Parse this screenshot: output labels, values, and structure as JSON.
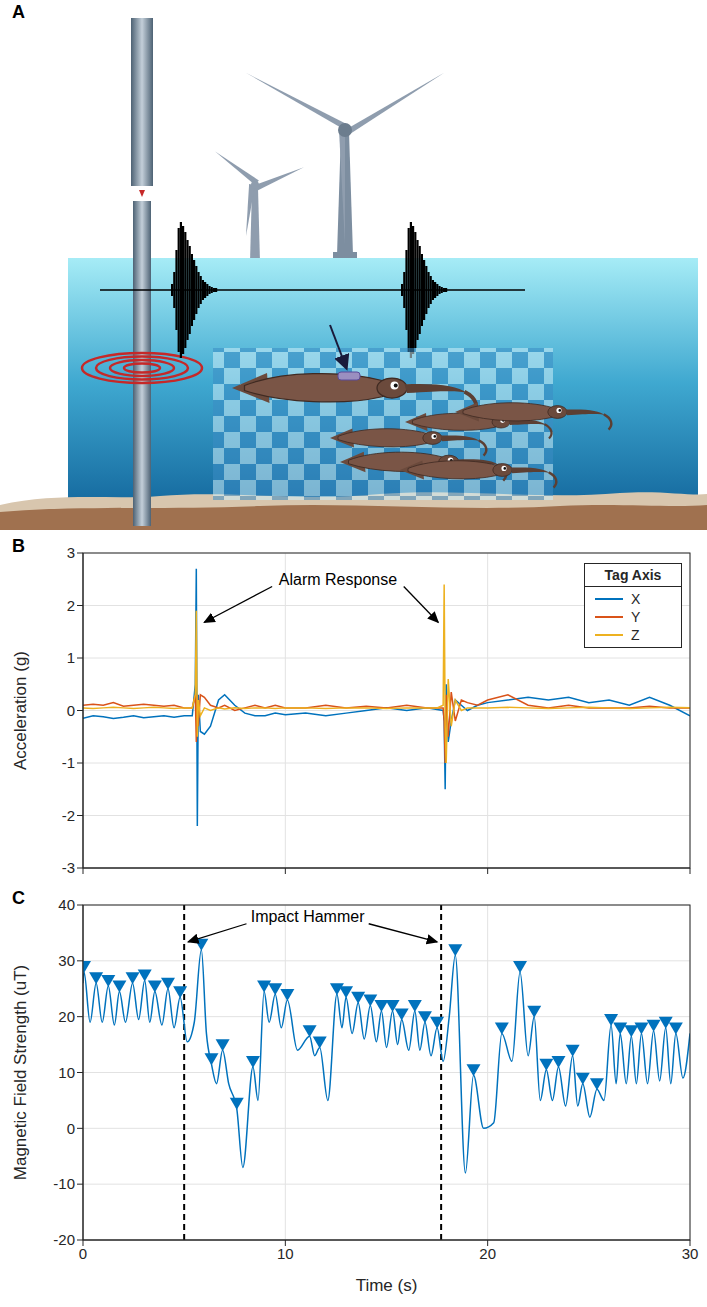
{
  "diagram": {
    "panel_label": "A"
  },
  "chart_data": [
    {
      "panel_label": "B",
      "type": "line",
      "y_label": "Acceleration (g)",
      "xlim": [
        0,
        30
      ],
      "xticks": [
        0,
        10,
        20,
        30
      ],
      "ylim": [
        -3,
        3
      ],
      "yticks": [
        -3,
        -2,
        -1,
        0,
        1,
        2,
        3
      ],
      "grid": true,
      "tick_labels": "y",
      "legend": "top-right",
      "legend_title": "Tag Axis",
      "annotation": {
        "text": "Alarm Response",
        "x": [
          5.6,
          17.85
        ]
      },
      "x": [
        0,
        0.5,
        1,
        1.5,
        2,
        2.5,
        3,
        3.5,
        4,
        4.5,
        5,
        5.4,
        5.55,
        5.6,
        5.65,
        5.7,
        5.8,
        6,
        6.3,
        6.7,
        7,
        7.5,
        8,
        8.5,
        9,
        9.5,
        10,
        11,
        12,
        13,
        14,
        15,
        16,
        17,
        17.5,
        17.8,
        17.85,
        17.9,
        17.95,
        18.05,
        18.2,
        18.4,
        18.7,
        19,
        19.5,
        20,
        21,
        22,
        23,
        24,
        25,
        26,
        27,
        28,
        29,
        30
      ],
      "series": [
        {
          "name": "X",
          "color": "#0072bd",
          "values": [
            -0.15,
            -0.1,
            -0.12,
            -0.15,
            -0.13,
            -0.1,
            -0.14,
            -0.12,
            -0.1,
            -0.13,
            -0.1,
            -0.1,
            0.5,
            2.7,
            -2.2,
            0.3,
            -0.4,
            -0.45,
            -0.3,
            0.2,
            0.3,
            0.1,
            -0.05,
            -0.1,
            -0.1,
            -0.05,
            -0.08,
            -0.05,
            -0.1,
            -0.05,
            0,
            0.05,
            0,
            0.05,
            0.02,
            0,
            -0.2,
            -1.5,
            0.5,
            -0.6,
            -0.2,
            0.2,
            0.1,
            0,
            0.1,
            0.15,
            0.2,
            0.25,
            0.2,
            0.25,
            0.15,
            0.2,
            0.1,
            0.25,
            0.1,
            -0.1
          ]
        },
        {
          "name": "Y",
          "color": "#d95319",
          "values": [
            0.1,
            0.12,
            0.1,
            0.15,
            0.08,
            0.1,
            0.12,
            0.1,
            0.08,
            0.1,
            0.05,
            0.05,
            0.3,
            -0.6,
            0.3,
            -0.3,
            0.3,
            0.25,
            0.1,
            0.05,
            0.1,
            0,
            0.05,
            0.1,
            0.05,
            0.1,
            0.05,
            0.05,
            0.1,
            0.05,
            0.08,
            0.05,
            0.1,
            0.05,
            0.05,
            0.05,
            -0.2,
            -1,
            0.3,
            -0.5,
            0.35,
            -0.2,
            0.2,
            0.15,
            0.1,
            0.2,
            0.3,
            0.1,
            0.05,
            0.1,
            0.05,
            0.05,
            0.05,
            0.08,
            0.05,
            0.05
          ]
        },
        {
          "name": "Z",
          "color": "#edb120",
          "values": [
            0.05,
            0.04,
            0.05,
            0.06,
            0.05,
            0.04,
            0.05,
            0.06,
            0.05,
            0.04,
            0.05,
            0.05,
            0.3,
            1.9,
            -0.5,
            0.2,
            -0.1,
            0.05,
            0,
            0.05,
            0.03,
            0.05,
            0.04,
            0.05,
            0.05,
            0.04,
            0.05,
            0.05,
            0.04,
            0.05,
            0.05,
            0.04,
            0.05,
            0.05,
            0.05,
            0.1,
            2.4,
            -0.3,
            -1,
            0.6,
            -0.3,
            0.2,
            0,
            0.05,
            0.05,
            0.05,
            0.06,
            0.05,
            0.04,
            0.05,
            0.06,
            0.05,
            0.04,
            0.05,
            0.06,
            0.05
          ]
        }
      ]
    },
    {
      "panel_label": "C",
      "type": "line",
      "x_label": "Time (s)",
      "y_label": "Magnetic Field Strength (uT)",
      "xlim": [
        0,
        30
      ],
      "xticks": [
        0,
        10,
        20,
        30
      ],
      "ylim": [
        -20,
        40
      ],
      "yticks": [
        -20,
        -10,
        0,
        10,
        20,
        30,
        40
      ],
      "grid": true,
      "annotation": {
        "text": "Impact Hammer",
        "x": [
          5.0,
          17.7
        ],
        "line_style": "dashed"
      },
      "series": [
        {
          "color": "#0072bd",
          "x": [
            0,
            0.05,
            0.35,
            0.65,
            0.95,
            1.25,
            1.55,
            1.8,
            2.1,
            2.45,
            2.75,
            3.05,
            3.3,
            3.55,
            3.9,
            4.2,
            4.5,
            4.8,
            5.15,
            5.5,
            5.85,
            6.1,
            6.35,
            6.6,
            6.9,
            7.2,
            7.6,
            7.9,
            8.4,
            8.65,
            8.95,
            9.2,
            9.5,
            9.8,
            10.1,
            10.6,
            11.2,
            11.45,
            11.7,
            12.1,
            12.55,
            12.8,
            13,
            13.3,
            13.6,
            13.9,
            14.2,
            14.5,
            14.75,
            15,
            15.3,
            15.55,
            15.75,
            16.1,
            16.4,
            16.65,
            16.9,
            17.2,
            17.5,
            17.8,
            18.1,
            18.4,
            18.9,
            19.3,
            19.8,
            20.3,
            20.7,
            21.2,
            21.6,
            22,
            22.3,
            22.6,
            22.9,
            23.2,
            23.5,
            23.85,
            24.2,
            24.45,
            24.7,
            25.05,
            25.4,
            25.75,
            26.1,
            26.35,
            26.55,
            26.85,
            27.1,
            27.35,
            27.6,
            27.9,
            28.2,
            28.5,
            28.8,
            29.05,
            29.3,
            29.65,
            30
          ],
          "values": [
            26,
            28,
            19,
            26,
            19,
            25.5,
            18.5,
            24.5,
            19,
            26,
            19.5,
            26.5,
            19,
            24.5,
            18.5,
            25,
            18,
            23.5,
            15.5,
            19,
            32,
            17,
            11.5,
            8,
            14,
            8,
            3.5,
            -7,
            11,
            5,
            24.5,
            19,
            24,
            18,
            23,
            14,
            16.5,
            13,
            14.5,
            5,
            24,
            18,
            23.5,
            17,
            22.5,
            16,
            22,
            15.5,
            21,
            14.5,
            21,
            15,
            19.5,
            14,
            21,
            14,
            19,
            13,
            18,
            12,
            20,
            31,
            -8,
            9.5,
            0,
            1,
            17,
            12,
            28,
            13,
            20,
            5,
            10.5,
            5,
            11,
            4,
            13,
            4,
            8,
            2,
            7,
            5,
            18.5,
            8,
            17,
            8,
            16.5,
            8,
            17,
            8,
            17.5,
            8.5,
            18,
            8,
            17,
            9,
            17
          ]
        },
        {
          "type": "scatter",
          "marker": "triangle-down",
          "color": "#0072bd",
          "x": [
            0.05,
            0.65,
            1.25,
            1.8,
            2.45,
            3.05,
            3.55,
            4.2,
            4.8,
            5.85,
            6.35,
            6.9,
            7.6,
            8.4,
            8.95,
            9.5,
            10.1,
            11.2,
            11.7,
            12.55,
            13,
            13.6,
            14.2,
            14.75,
            15.3,
            15.75,
            16.4,
            16.9,
            17.5,
            18.4,
            19.3,
            20.7,
            21.6,
            22.3,
            22.9,
            23.5,
            24.2,
            24.7,
            25.4,
            26.1,
            26.55,
            27.1,
            27.6,
            28.2,
            28.8,
            29.3
          ],
          "values": [
            28,
            26,
            25.5,
            24.5,
            26,
            26.5,
            24.5,
            25,
            23.5,
            32,
            11.5,
            14,
            3.5,
            11,
            24.5,
            24,
            23,
            16.5,
            14.5,
            24,
            23.5,
            22.5,
            22,
            21,
            21,
            19.5,
            21,
            19,
            18,
            31,
            9.5,
            17,
            28,
            20,
            10.5,
            11,
            13,
            8,
            7,
            18.5,
            17,
            16.5,
            17,
            17.5,
            18,
            17
          ]
        }
      ]
    }
  ]
}
